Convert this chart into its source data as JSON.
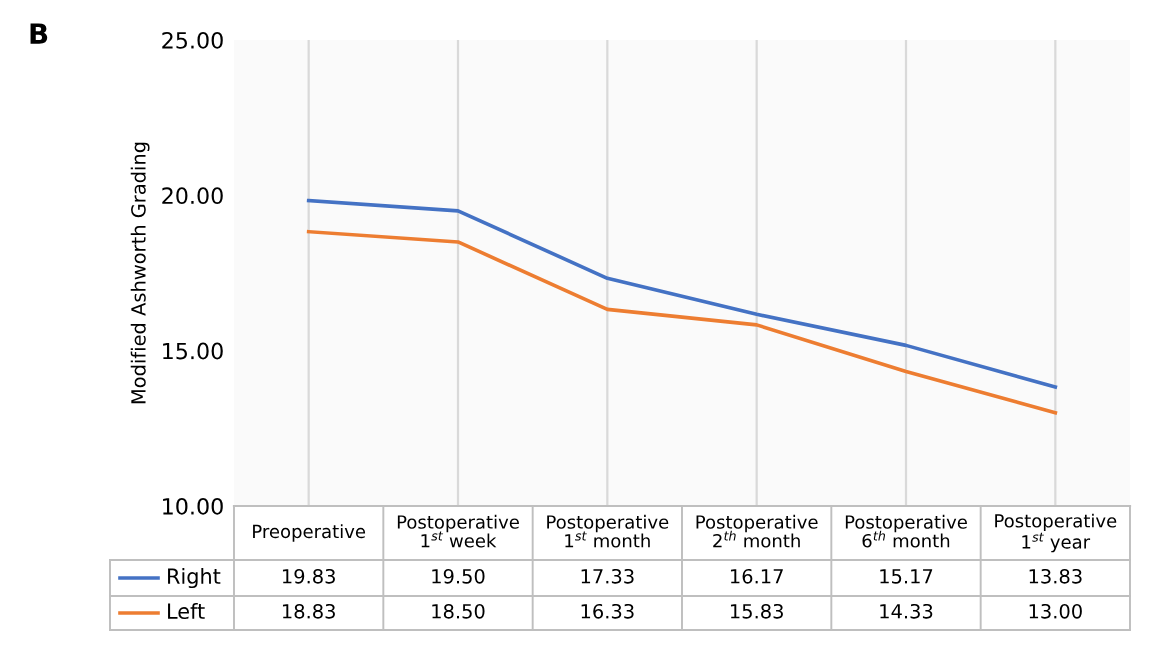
{
  "chart_data": {
    "type": "line",
    "title": "B",
    "ylabel": "Modified Ashworth Grading",
    "categories": [
      "Preoperative",
      "Postoperative\n1$^{st}$ week",
      "Postoperative\n1$^{st}$ month",
      "Postoperative\n2$^{th}$ month",
      "Postoperative\n6$^{th}$ month",
      "Postoperative\n1$^{st}$ year"
    ],
    "series": [
      {
        "name": "Right",
        "color": "#4472c4",
        "values": [
          19.83,
          19.5,
          17.33,
          16.17,
          15.17,
          13.83
        ],
        "value_labels": [
          "19.83",
          "19.50",
          "17.33",
          "16.17",
          "15.17",
          "13.83"
        ]
      },
      {
        "name": "Left",
        "color": "#ed7d31",
        "values": [
          18.83,
          18.5,
          16.33,
          15.83,
          14.33,
          13.0
        ],
        "value_labels": [
          "18.83",
          "18.50",
          "16.33",
          "15.83",
          "14.33",
          "13.00"
        ]
      }
    ],
    "ylim": [
      10,
      25
    ],
    "yticks": [
      {
        "value": 10,
        "label": "10.00"
      },
      {
        "value": 15,
        "label": "15.00"
      },
      {
        "value": 20,
        "label": "20.00"
      },
      {
        "value": 25,
        "label": "25.00"
      }
    ],
    "grid": "x",
    "legend": "bottom left",
    "marker": "none",
    "line_style": "solid"
  }
}
